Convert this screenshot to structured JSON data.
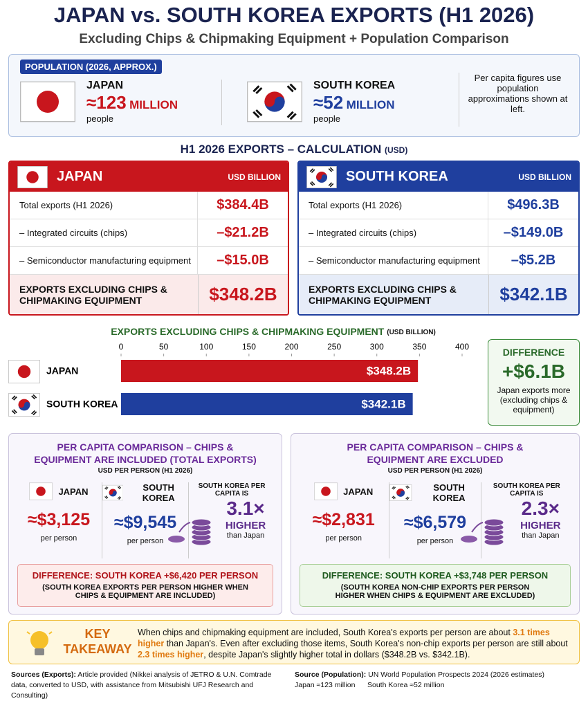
{
  "header": {
    "title": "JAPAN vs. SOUTH KOREA EXPORTS (H1 2026)",
    "subtitle": "Excluding Chips & Chipmaking Equipment + Population Comparison"
  },
  "population": {
    "badge": "POPULATION (2026, APPROX.)",
    "countries": [
      {
        "name": "JAPAN",
        "value": "≈123",
        "unit": "MILLION",
        "note": "people"
      },
      {
        "name": "SOUTH KOREA",
        "value": "≈52",
        "unit": "MILLION",
        "note": "people"
      }
    ],
    "note": "Per capita figures use population approximations shown at left."
  },
  "calculation": {
    "title": "H1 2026 EXPORTS – CALCULATION",
    "unit": "(USD)",
    "tables": [
      {
        "country": "JAPAN",
        "unit": "USD BILLION",
        "rows": [
          [
            "Total exports (H1 2026)",
            "$384.4B"
          ],
          [
            "– Integrated circuits (chips)",
            "–$21.2B"
          ],
          [
            "– Semiconductor manufacturing equipment",
            "–$15.0B"
          ]
        ],
        "total_label": "EXPORTS EXCLUDING CHIPS & CHIPMAKING EQUIPMENT",
        "total": "$348.2B"
      },
      {
        "country": "SOUTH KOREA",
        "unit": "USD BILLION",
        "rows": [
          [
            "Total exports (H1 2026)",
            "$496.3B"
          ],
          [
            "– Integrated circuits (chips)",
            "–$149.0B"
          ],
          [
            "– Semiconductor manufacturing equipment",
            "–$5.2B"
          ]
        ],
        "total_label": "EXPORTS EXCLUDING CHIPS & CHIPMAKING EQUIPMENT",
        "total": "$342.1B"
      }
    ]
  },
  "chart_data": {
    "type": "bar",
    "orientation": "horizontal",
    "title": "EXPORTS EXCLUDING CHIPS & CHIPMAKING EQUIPMENT",
    "unit": "(USD BILLION)",
    "categories": [
      "JAPAN",
      "SOUTH KOREA"
    ],
    "values": [
      348.2,
      342.1
    ],
    "value_labels": [
      "$348.2B",
      "$342.1B"
    ],
    "colors": [
      "#c8161d",
      "#1f3f9e"
    ],
    "xlim": [
      0,
      400
    ],
    "xticks": [
      0,
      50,
      100,
      150,
      200,
      250,
      300,
      350,
      400
    ]
  },
  "difference": {
    "title": "DIFFERENCE",
    "value": "+$6.1B",
    "note": "Japan exports more (excluding chips & equipment)"
  },
  "per_capita": [
    {
      "title": "PER CAPITA COMPARISON – CHIPS & EQUIPMENT ARE INCLUDED (TOTAL EXPORTS)",
      "unit": "USD PER PERSON (H1 2026)",
      "countries": [
        {
          "name": "JAPAN",
          "value": "≈$3,125",
          "note": "per person"
        },
        {
          "name": "SOUTH KOREA",
          "value": "≈$9,545",
          "note": "per person"
        }
      ],
      "ratio_label": "SOUTH KOREA PER CAPITA IS",
      "ratio": "3.1×",
      "ratio_word": "HIGHER",
      "ratio_note": "than Japan",
      "difference": "DIFFERENCE: SOUTH KOREA +$6,420 PER PERSON",
      "difference_note": "(SOUTH KOREA EXPORTS PER PERSON HIGHER WHEN CHIPS & EQUIPMENT ARE INCLUDED)"
    },
    {
      "title": "PER CAPITA COMPARISON – CHIPS & EQUIPMENT ARE EXCLUDED",
      "unit": "USD PER PERSON (H1 2026)",
      "countries": [
        {
          "name": "JAPAN",
          "value": "≈$2,831",
          "note": "per person"
        },
        {
          "name": "SOUTH KOREA",
          "value": "≈$6,579",
          "note": "per person"
        }
      ],
      "ratio_label": "SOUTH KOREA PER CAPITA IS",
      "ratio": "2.3×",
      "ratio_word": "HIGHER",
      "ratio_note": "than Japan",
      "difference": "DIFFERENCE: SOUTH KOREA +$3,748 PER PERSON",
      "difference_note": "(SOUTH KOREA NON-CHIP EXPORTS PER PERSON HIGHER WHEN CHIPS & EQUIPMENT ARE EXCLUDED)"
    }
  ],
  "takeaway": {
    "title": "KEY TAKEAWAY",
    "text": [
      "When chips and chipmaking equipment are included, South Korea's exports per person are about ",
      "3.1 times higher",
      " than Japan's. Even after excluding those items, South Korea's non-chip exports per person are still about ",
      "2.3 times higher",
      ", despite Japan's slightly higher total in dollars ($348.2B vs. $342.1B)."
    ]
  },
  "sources": {
    "exports_label": "Sources (Exports):",
    "exports": "Article provided (Nikkei analysis of JETRO & U.N. Comtrade data, converted to USD, with assistance from Mitsubishi UFJ Research and Consulting)",
    "population_label": "Source (Population):",
    "population": "UN World Population Prospects 2024 (2026 estimates)",
    "population_japan": "Japan ≈123 million",
    "population_korea": "South Korea ≈52 million"
  }
}
